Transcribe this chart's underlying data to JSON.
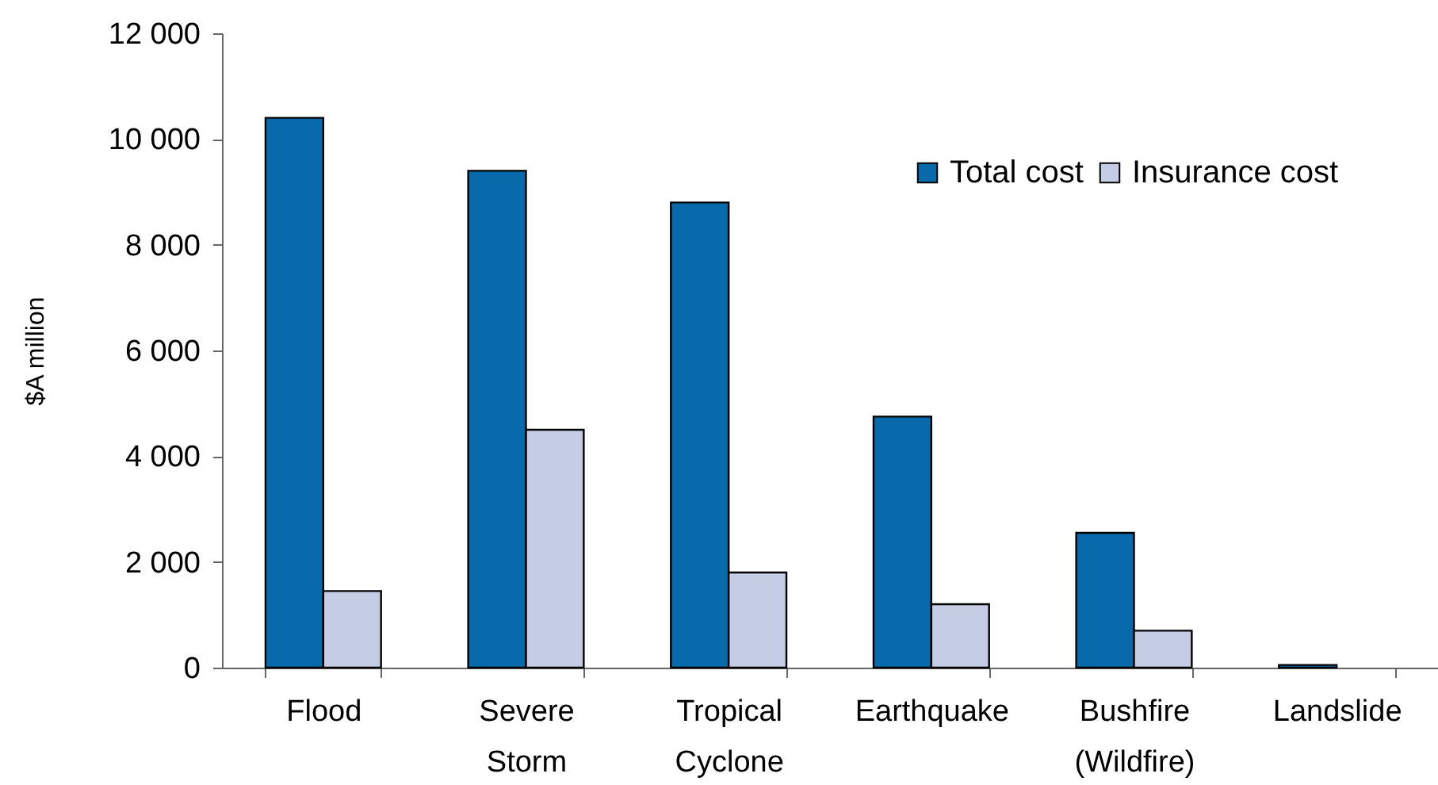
{
  "chart_data": {
    "type": "bar",
    "ylabel": "$A million",
    "categories": [
      "Flood",
      "Severe Storm",
      "Tropical Cyclone",
      "Earthquake",
      "Bushfire (Wildfire)",
      "Landslide"
    ],
    "series": [
      {
        "name": "Total cost",
        "color": "#0869ab",
        "values": [
          10400,
          9400,
          8800,
          4750,
          2550,
          50
        ]
      },
      {
        "name": "Insurance cost",
        "color": "#c4cde4",
        "values": [
          1450,
          4500,
          1800,
          1200,
          700,
          null
        ]
      }
    ],
    "ylim": [
      0,
      12000
    ],
    "yticks": [
      {
        "value": 0,
        "label": "0"
      },
      {
        "value": 2000,
        "label": "2 000"
      },
      {
        "value": 4000,
        "label": "4 000"
      },
      {
        "value": 6000,
        "label": "6 000"
      },
      {
        "value": 8000,
        "label": "8 000"
      },
      {
        "value": 10000,
        "label": "10 000"
      },
      {
        "value": 12000,
        "label": "12 000"
      }
    ],
    "grid": false,
    "legend": "top right"
  }
}
